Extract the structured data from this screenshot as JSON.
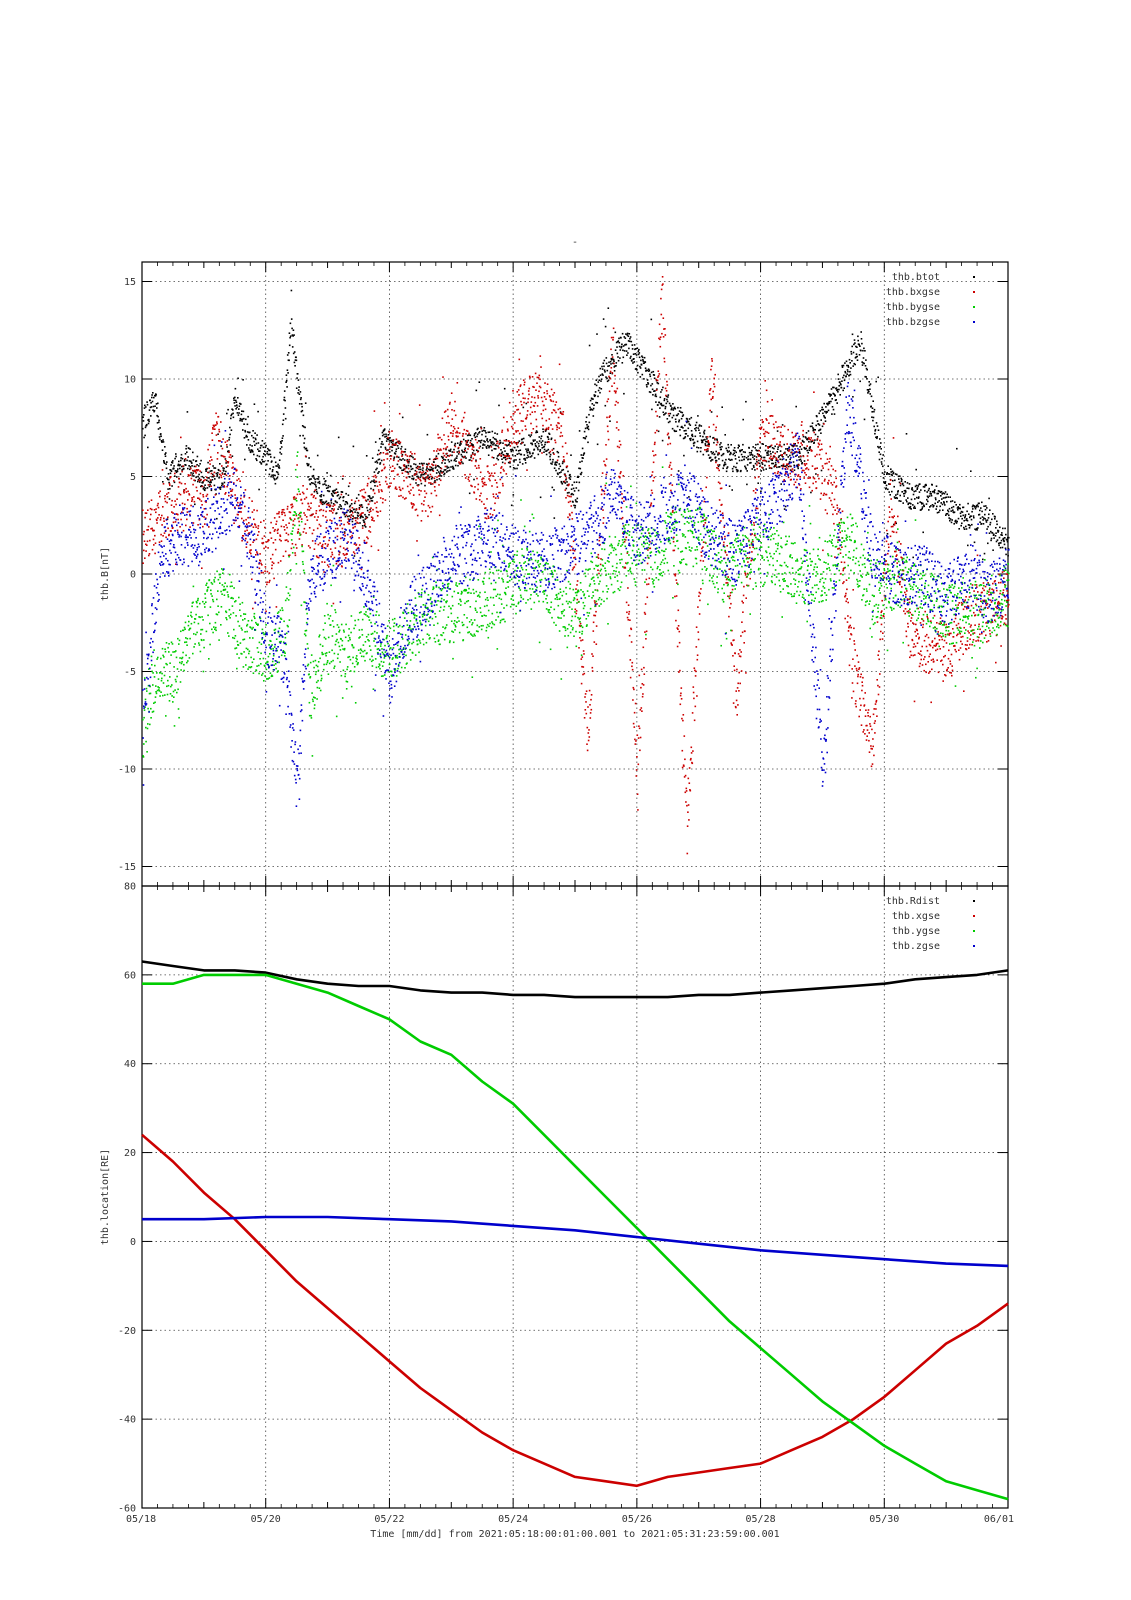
{
  "colors": {
    "black": "#000000",
    "red": "#cc0000",
    "green": "#00cc00",
    "blue": "#0000cc",
    "grid": "#444444",
    "background": "#ffffff"
  },
  "figure": {
    "title": "-",
    "xlabel": "Time [mm/dd]  from 2021:05:18:00:01:00.001  to  2021:05:31:23:59:00.001",
    "x_tick_labels": [
      "05/18",
      "05/20",
      "05/22",
      "05/24",
      "05/26",
      "05/28",
      "05/30",
      "06/01"
    ]
  },
  "chart_data": [
    {
      "type": "scatter",
      "ylabel": "thb.B[nT]",
      "xlim": [
        0,
        14
      ],
      "x_unit": "days since 05/18",
      "ylim": [
        -16,
        16
      ],
      "y_ticks": [
        15,
        10,
        5,
        0,
        -5,
        -10,
        -15
      ],
      "grid": true,
      "legend_position": "top-right",
      "series": [
        {
          "name": "thb.btot",
          "color_key": "black",
          "x": [
            0,
            0.2,
            0.4,
            0.7,
            1.0,
            1.3,
            1.5,
            1.7,
            2.0,
            2.2,
            2.4,
            2.5,
            2.7,
            3.0,
            3.3,
            3.6,
            3.9,
            4.2,
            4.5,
            5.0,
            5.5,
            6.0,
            6.5,
            7.0,
            7.2,
            7.4,
            7.8,
            8.2,
            8.6,
            9.0,
            9.4,
            9.8,
            10.2,
            10.6,
            11.0,
            11.3,
            11.6,
            12.0,
            12.4,
            12.8,
            13.2,
            13.6,
            14.0
          ],
          "y": [
            8,
            9,
            5,
            6,
            5,
            5,
            9,
            7,
            6,
            5,
            13,
            10,
            5,
            4,
            3.5,
            3,
            7,
            6,
            5,
            6,
            7,
            6,
            7,
            4,
            8,
            10,
            12,
            10,
            8,
            7,
            6,
            6,
            6,
            6,
            8,
            10,
            12,
            5,
            4,
            4,
            3,
            3,
            1.5
          ]
        },
        {
          "name": "thb.bxgse",
          "color_key": "red",
          "x": [
            0,
            0.3,
            0.6,
            1.0,
            1.2,
            1.5,
            1.8,
            2.0,
            2.3,
            2.6,
            3.0,
            3.3,
            3.6,
            4.0,
            4.3,
            4.6,
            5.0,
            5.3,
            5.6,
            6.0,
            6.4,
            6.8,
            7.2,
            7.6,
            8.0,
            8.4,
            8.8,
            9.2,
            9.6,
            10.0,
            10.4,
            10.8,
            11.2,
            11.5,
            11.8,
            12.1,
            12.4,
            12.7,
            13.0,
            13.4,
            13.7,
            14.0
          ],
          "y": [
            2,
            3,
            4,
            4,
            7,
            4,
            2,
            1,
            2,
            3,
            2,
            2,
            3,
            6,
            5,
            4,
            8,
            6,
            4,
            8,
            9,
            7,
            -8,
            12,
            -10,
            14,
            -13,
            10,
            -6,
            7,
            6,
            6,
            4,
            -5,
            -9,
            4,
            -3,
            -3.5,
            -4,
            -2,
            -2,
            -1
          ]
        },
        {
          "name": "thb.bygse",
          "color_key": "green",
          "x": [
            0,
            0.2,
            0.5,
            0.8,
            1.0,
            1.3,
            1.6,
            2.0,
            2.3,
            2.5,
            2.7,
            3.0,
            3.3,
            3.6,
            4.0,
            4.3,
            4.6,
            5.0,
            5.4,
            5.8,
            6.2,
            6.6,
            7.0,
            7.4,
            7.8,
            8.2,
            8.6,
            9.0,
            9.4,
            9.8,
            10.2,
            10.6,
            11.0,
            11.4,
            11.8,
            12.2,
            12.6,
            13.0,
            13.4,
            13.8,
            14.0
          ],
          "y": [
            -8,
            -5,
            -5,
            -3,
            -2,
            -1,
            -3,
            -4,
            -3,
            5,
            -6,
            -3,
            -4,
            -3,
            -4,
            -3,
            -2,
            -2,
            -1.5,
            -1,
            0,
            -1,
            -2,
            0,
            1,
            1,
            2,
            2,
            0,
            1,
            1,
            0,
            0,
            2,
            -1,
            0,
            -1,
            -2,
            -2,
            -1.5,
            -1
          ]
        },
        {
          "name": "thb.bzgse",
          "color_key": "blue",
          "x": [
            0,
            0.3,
            0.6,
            0.9,
            1.2,
            1.5,
            1.8,
            2.0,
            2.3,
            2.5,
            2.7,
            3.0,
            3.3,
            3.6,
            4.0,
            4.3,
            4.6,
            5.0,
            5.3,
            5.6,
            6.0,
            6.4,
            6.8,
            7.2,
            7.6,
            8.0,
            8.4,
            8.8,
            9.2,
            9.6,
            10.0,
            10.3,
            10.6,
            11.0,
            11.4,
            11.8,
            12.2,
            12.6,
            13.0,
            13.4,
            13.7,
            14.0
          ],
          "y": [
            -7,
            1,
            2,
            2,
            3,
            4,
            1,
            -3,
            -4,
            -11,
            0,
            1,
            2,
            0,
            -5,
            -2,
            -1,
            1,
            1,
            2,
            1,
            0.5,
            1,
            2,
            4,
            2,
            3,
            4,
            2,
            1,
            3,
            4,
            6,
            -10,
            9,
            1,
            0,
            0,
            -1,
            0,
            -1,
            0
          ]
        }
      ]
    },
    {
      "type": "line",
      "ylabel": "thb.location[RE]",
      "xlim": [
        0,
        14
      ],
      "x_unit": "days since 05/18",
      "ylim": [
        -60,
        80
      ],
      "y_ticks": [
        80,
        60,
        40,
        20,
        0,
        -20,
        -40,
        -60
      ],
      "grid": true,
      "legend_position": "top-right",
      "series": [
        {
          "name": "thb.Rdist",
          "color_key": "black",
          "x": [
            0,
            0.5,
            1.0,
            1.5,
            2.0,
            2.5,
            3.0,
            3.5,
            4.0,
            4.5,
            5.0,
            5.5,
            6.0,
            6.5,
            7.0,
            7.5,
            8.0,
            8.5,
            9.0,
            9.5,
            10.0,
            10.5,
            11.0,
            11.5,
            12.0,
            12.5,
            13.0,
            13.5,
            14.0
          ],
          "y": [
            63,
            62,
            61,
            61,
            60.5,
            59,
            58,
            57.5,
            57.5,
            56.5,
            56,
            56,
            55.5,
            55.5,
            55,
            55,
            55,
            55,
            55.5,
            55.5,
            56,
            56.5,
            57,
            57.5,
            58,
            59,
            59.5,
            60,
            61
          ]
        },
        {
          "name": "thb.xgse",
          "color_key": "red",
          "x": [
            0,
            0.5,
            1.0,
            1.5,
            2.0,
            2.5,
            3.0,
            3.5,
            4.0,
            4.5,
            5.0,
            5.5,
            6.0,
            6.5,
            7.0,
            7.5,
            8.0,
            8.5,
            9.0,
            9.5,
            10.0,
            10.5,
            11.0,
            11.5,
            12.0,
            12.5,
            13.0,
            13.5,
            14.0
          ],
          "y": [
            24,
            18,
            11,
            5,
            -2,
            -9,
            -15,
            -21,
            -27,
            -33,
            -38,
            -43,
            -47,
            -50,
            -53,
            -54,
            -55,
            -53,
            -52,
            -51,
            -50,
            -47,
            -44,
            -40,
            -35,
            -29,
            -23,
            -19,
            -14
          ]
        },
        {
          "name": "thb.ygse",
          "color_key": "green",
          "x": [
            0,
            0.5,
            1.0,
            1.5,
            2.0,
            2.5,
            3.0,
            3.5,
            4.0,
            4.5,
            5.0,
            5.5,
            6.0,
            6.5,
            7.0,
            7.5,
            8.0,
            8.5,
            9.0,
            9.5,
            10.0,
            10.5,
            11.0,
            11.5,
            12.0,
            12.5,
            13.0,
            13.5,
            14.0
          ],
          "y": [
            58,
            58,
            60,
            60,
            60,
            58,
            56,
            53,
            50,
            45,
            42,
            36,
            31,
            24,
            17,
            10,
            3,
            -4,
            -11,
            -18,
            -24,
            -30,
            -36,
            -41,
            -46,
            -50,
            -54,
            -56,
            -58
          ]
        },
        {
          "name": "thb.zgse",
          "color_key": "blue",
          "x": [
            0,
            1,
            2,
            3,
            4,
            5,
            6,
            7,
            8,
            9,
            10,
            11,
            12,
            13,
            14
          ],
          "y": [
            5,
            5,
            5.5,
            5.5,
            5,
            4.5,
            3.5,
            2.5,
            1,
            -0.5,
            -2,
            -3,
            -4,
            -5,
            -5.5
          ]
        }
      ]
    }
  ]
}
